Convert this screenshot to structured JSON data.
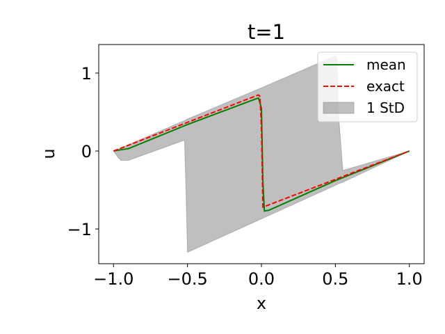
{
  "chart_data": {
    "type": "line",
    "title": "t=1",
    "x_label": "x",
    "y_label": "u",
    "xlim": [
      -1.1,
      1.1
    ],
    "ylim": [
      -1.446,
      1.366
    ],
    "xticks": [
      {
        "value": -1,
        "label": "−1.0"
      },
      {
        "value": -0.5,
        "label": "−0.5"
      },
      {
        "value": 0,
        "label": "0.0"
      },
      0.5,
      {
        "value": 1,
        "label": "1.0"
      }
    ],
    "yticks": [
      {
        "value": -1,
        "label": "−1"
      },
      0,
      1
    ],
    "legend": "upper right",
    "series": [
      {
        "name": "mean",
        "color": "#008000",
        "dash": "solid",
        "x": [
          -1,
          -0.97,
          -0.9,
          -0.5,
          -0.05,
          -0.02,
          0,
          0.01,
          0.02,
          0.05,
          0.5,
          1
        ],
        "values": [
          0,
          0.01,
          0.03,
          0.34,
          0.66,
          0.68,
          0.55,
          -0.4,
          -0.77,
          -0.76,
          -0.38,
          0
        ]
      },
      {
        "name": "exact",
        "color": "#ff0000",
        "dash": "dashed",
        "x": [
          -1,
          -0.02,
          -0.01,
          0.0,
          0.01,
          1
        ],
        "values": [
          0,
          0.72,
          0.7,
          0.3,
          -0.72,
          0
        ]
      }
    ],
    "band": {
      "name": "1 StD",
      "color": "#808080",
      "x": [
        -1,
        -0.97,
        -0.95,
        -0.9,
        -0.52,
        -0.51,
        -0.5,
        0,
        0.5,
        0.51,
        0.52,
        0.55,
        1
      ],
      "upper": [
        0,
        0.02,
        0.04,
        0.08,
        0.39,
        0.4,
        0.41,
        0.81,
        1.22,
        1.2,
        0.5,
        -0.25,
        0
      ],
      "lower": [
        0,
        -0.08,
        -0.12,
        -0.12,
        0.14,
        -0.5,
        -1.3,
        -0.87,
        -0.44,
        -0.43,
        -0.42,
        -0.4,
        0
      ]
    }
  }
}
